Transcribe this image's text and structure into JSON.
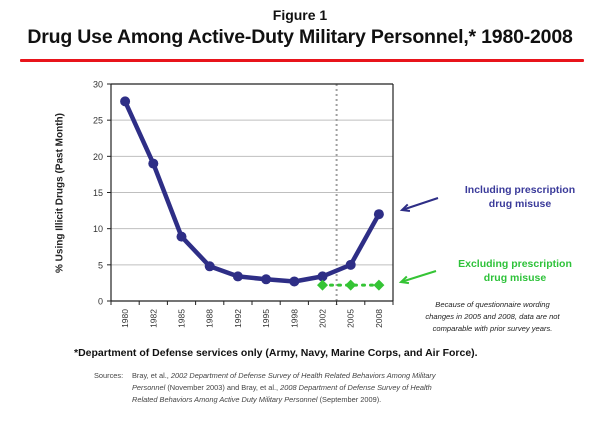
{
  "figure_label": "Figure 1",
  "title": "Drug Use Among Active-Duty Military Personnel,* 1980-2008",
  "colors": {
    "accent_rule": "#e8141b",
    "series_including": "#2e2e86",
    "series_excluding": "#35c435",
    "gridline": "#bfbfbf",
    "divider": "#a0a0a0"
  },
  "annotations": {
    "including_line1": "Including prescription",
    "including_line2": "drug misuse",
    "excluding_line1": "Excluding prescription",
    "excluding_line2": "drug misuse",
    "caveat_line1": "Because of questionnaire wording",
    "caveat_line2": "changes in 2005 and 2008, data are not",
    "caveat_line3": "comparable with prior survey years."
  },
  "footnote": "*Department of Defense services only (Army, Navy, Marine Corps, and Air Force).",
  "sources": {
    "label": "Sources:",
    "line1_a": "Bray, et al., ",
    "line1_b": "2002 Department of Defense Survey of Health Related Behaviors Among Military",
    "line2_a": "Personnel",
    "line2_b": " (November 2003)  and Bray, et al., ",
    "line2_c": "2008 Department of  Defense Survey of Health",
    "line3_a": "Related Behaviors Among Active  Duty Military Personnel",
    "line3_b": " (September 2009)."
  },
  "chart_data": {
    "type": "line",
    "title": "Drug Use Among Active-Duty Military Personnel,* 1980-2008",
    "xlabel": "",
    "ylabel": "% Using Illicit Drugs (Past Month)",
    "categories": [
      "1980",
      "1982",
      "1985",
      "1988",
      "1992",
      "1995",
      "1998",
      "2002",
      "2005",
      "2008"
    ],
    "ylim": [
      0,
      30
    ],
    "yticks": [
      0,
      5,
      10,
      15,
      20,
      25,
      30
    ],
    "grid": true,
    "divider_between": [
      "2002",
      "2005"
    ],
    "series": [
      {
        "name": "Including prescription drug misuse",
        "marker": "circle",
        "style": "solid",
        "values": [
          27.6,
          19.0,
          8.9,
          4.8,
          3.4,
          3.0,
          2.7,
          3.4,
          5.0,
          12.0
        ]
      },
      {
        "name": "Excluding prescription drug misuse",
        "marker": "diamond",
        "style": "dotted",
        "values": [
          null,
          null,
          null,
          null,
          null,
          null,
          null,
          2.2,
          2.2,
          2.2
        ]
      }
    ]
  }
}
